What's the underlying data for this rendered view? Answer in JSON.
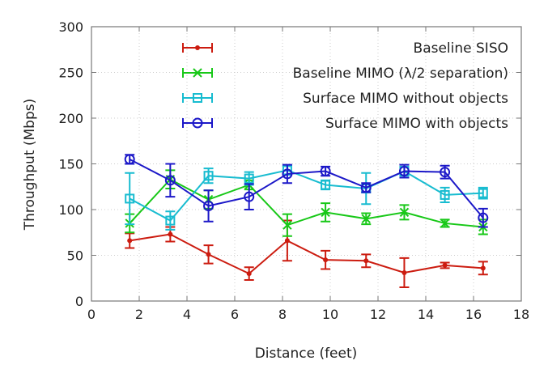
{
  "chart_data": {
    "type": "line",
    "title": "",
    "xlabel": "Distance (feet)",
    "ylabel": "Throughput (Mbps)",
    "xlim": [
      0,
      18
    ],
    "ylim": [
      0,
      300
    ],
    "xticks": [
      0,
      2,
      4,
      6,
      8,
      10,
      12,
      14,
      16,
      18
    ],
    "yticks": [
      0,
      50,
      100,
      150,
      200,
      250,
      300
    ],
    "grid": true,
    "legend_position": "top-right",
    "x": [
      1.6,
      3.3,
      4.9,
      6.6,
      8.2,
      9.8,
      11.5,
      13.1,
      14.8,
      16.4
    ],
    "series": [
      {
        "name": "Baseline SISO",
        "color": "#cc1c10",
        "marker": "dot",
        "values": [
          66,
          73,
          51,
          30,
          66,
          45,
          44,
          31,
          39,
          36
        ],
        "errors": [
          8,
          8,
          10,
          7,
          22,
          10,
          7,
          16,
          3,
          7
        ]
      },
      {
        "name": "Baseline MIMO (λ/2 separation)",
        "color": "#18c818",
        "marker": "x",
        "values": [
          85,
          133,
          111,
          127,
          83,
          97,
          90,
          97,
          85,
          81
        ],
        "errors": [
          10,
          10,
          10,
          5,
          12,
          10,
          6,
          8,
          4,
          8
        ]
      },
      {
        "name": "Surface MIMO without objects",
        "color": "#18bcd0",
        "marker": "square",
        "values": [
          112,
          88,
          137,
          134,
          143,
          127,
          123,
          142,
          116,
          118
        ],
        "errors": [
          28,
          10,
          8,
          7,
          5,
          5,
          17,
          5,
          8,
          6
        ]
      },
      {
        "name": "Surface MIMO with objects",
        "color": "#1c18c8",
        "marker": "circle",
        "values": [
          155,
          132,
          104,
          114,
          139,
          142,
          124,
          142,
          141,
          91
        ],
        "errors": [
          5,
          18,
          17,
          14,
          10,
          5,
          5,
          7,
          7,
          10
        ]
      }
    ]
  }
}
